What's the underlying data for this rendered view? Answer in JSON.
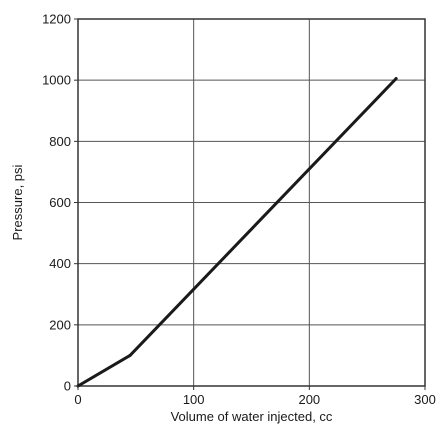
{
  "chart_data": {
    "type": "line",
    "title": "",
    "xlabel": "Volume of water injected, cc",
    "ylabel": "Pressure, psi",
    "xlim": [
      0,
      300
    ],
    "ylim": [
      0,
      1200
    ],
    "x_ticks": [
      0,
      100,
      200,
      300
    ],
    "y_ticks": [
      0,
      200,
      400,
      600,
      800,
      1000,
      1200
    ],
    "x_tick_labels": [
      "0",
      "100",
      "200",
      "300"
    ],
    "y_tick_labels": [
      "0",
      "200",
      "400",
      "600",
      "800",
      "1000",
      "1200"
    ],
    "grid": true,
    "legend": "none",
    "series": [
      {
        "x": [
          0,
          45,
          275
        ],
        "y": [
          0,
          100,
          1005
        ]
      }
    ],
    "colors": {
      "line": "#1a1a1a",
      "grid": "#555555",
      "frame": "#333333"
    }
  }
}
